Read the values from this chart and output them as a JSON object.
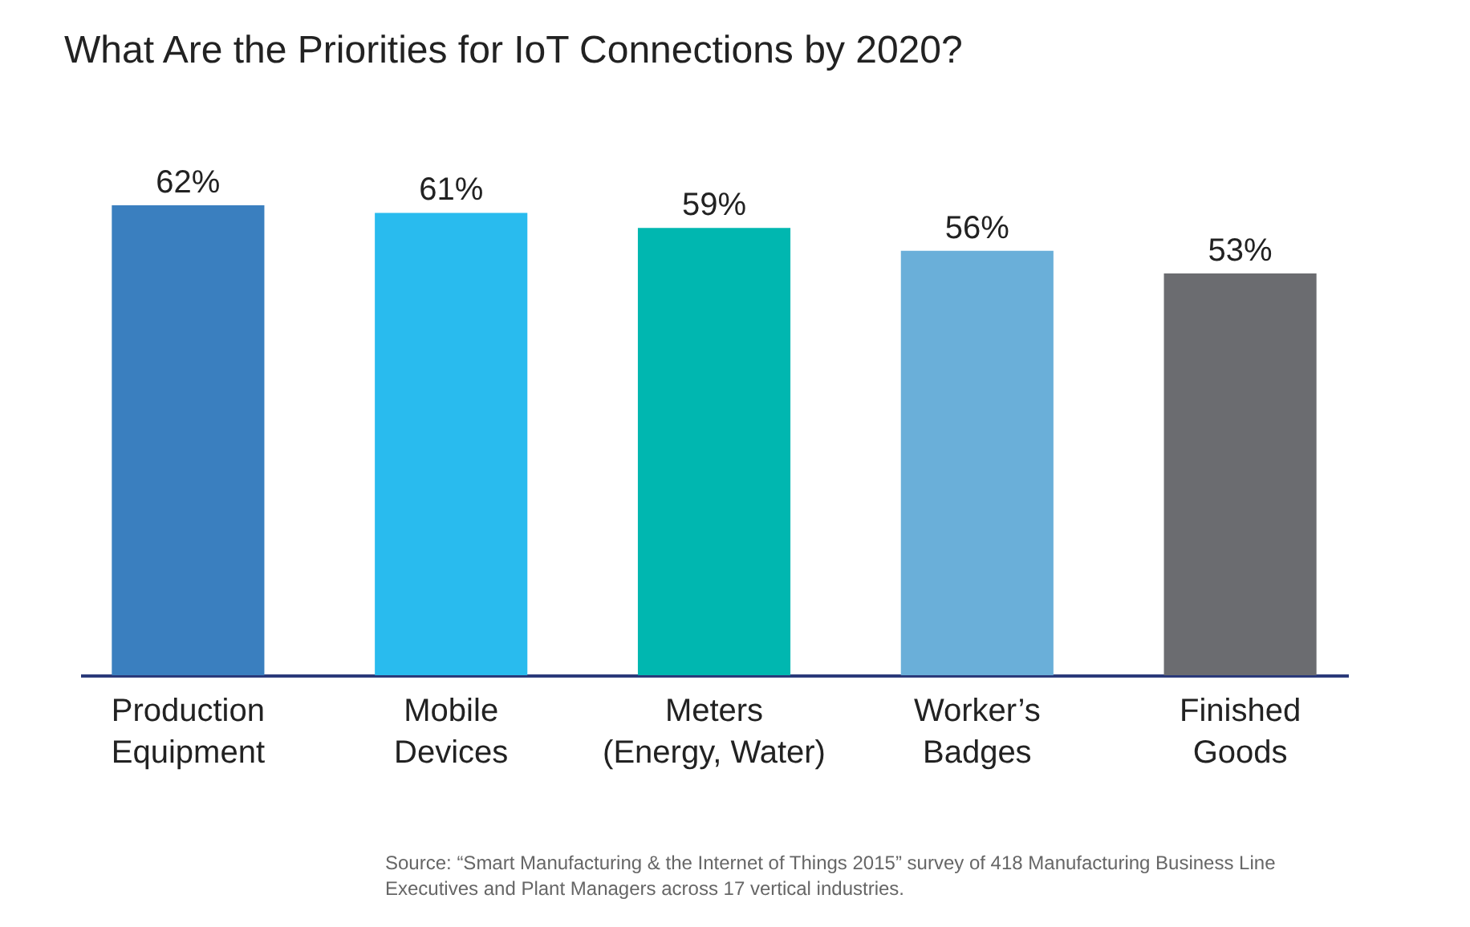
{
  "chart_data": {
    "type": "bar",
    "title": "What Are the Priorities for IoT Connections by 2020?",
    "categories": [
      "Production Equipment",
      "Mobile Devices",
      "Meters (Energy, Water)",
      "Worker’s Badges",
      "Finished Goods"
    ],
    "values": [
      62,
      61,
      59,
      56,
      53
    ],
    "colors": [
      "#3a7fbf",
      "#29bbee",
      "#00b7b0",
      "#6aafd9",
      "#6b6c70"
    ],
    "value_labels": [
      "62%",
      "61%",
      "59%",
      "56%",
      "53%"
    ],
    "tick_labels": "x",
    "annotations": [
      "Source: “Smart Manufacturing & the Internet of Things 2015” survey of 418 Manufacturing Business Line Executives and Plant Managers across 17 vertical industries."
    ]
  }
}
